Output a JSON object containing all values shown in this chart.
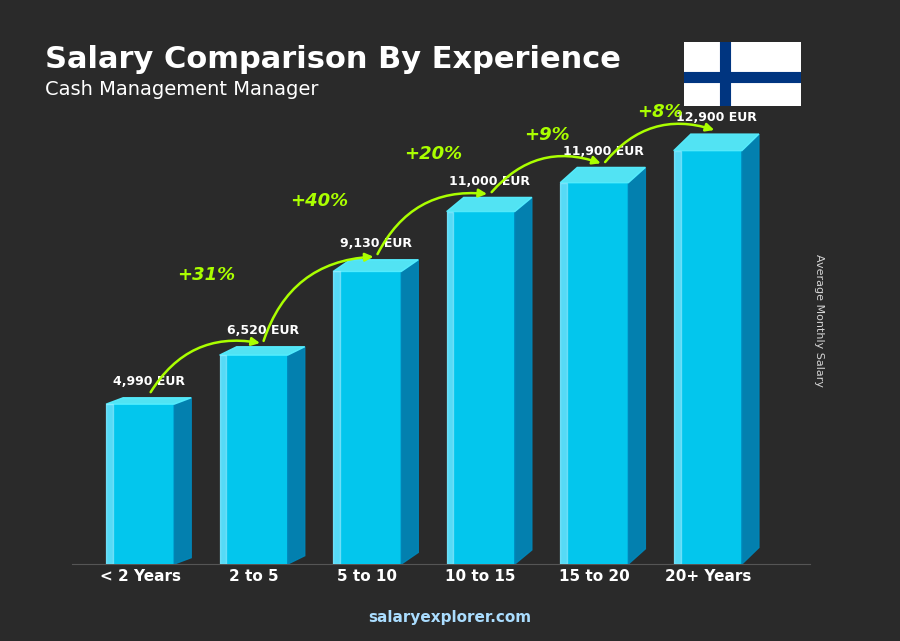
{
  "title": "Salary Comparison By Experience",
  "subtitle": "Cash Management Manager",
  "categories": [
    "< 2 Years",
    "2 to 5",
    "5 to 10",
    "10 to 15",
    "15 to 20",
    "20+ Years"
  ],
  "values": [
    4990,
    6520,
    9130,
    11000,
    11900,
    12900
  ],
  "labels": [
    "4,990 EUR",
    "6,520 EUR",
    "9,130 EUR",
    "11,000 EUR",
    "11,900 EUR",
    "12,900 EUR"
  ],
  "pct_labels": [
    "+31%",
    "+40%",
    "+20%",
    "+9%",
    "+8%"
  ],
  "bar_color_top": "#00cfff",
  "bar_color_mid": "#0090cc",
  "bar_color_bottom": "#005f99",
  "bar_color_face_light": "#00d4ff",
  "bar_color_face_dark": "#0077bb",
  "background_color": "#1a1a2e",
  "title_color": "#ffffff",
  "subtitle_color": "#ffffff",
  "label_color": "#ffffff",
  "pct_color": "#aaff00",
  "xlabel_color": "#ffffff",
  "ylabel": "Average Monthly Salary",
  "watermark": "salaryexplorer.com",
  "ylim": [
    0,
    15000
  ],
  "fig_width": 9.0,
  "fig_height": 6.41
}
